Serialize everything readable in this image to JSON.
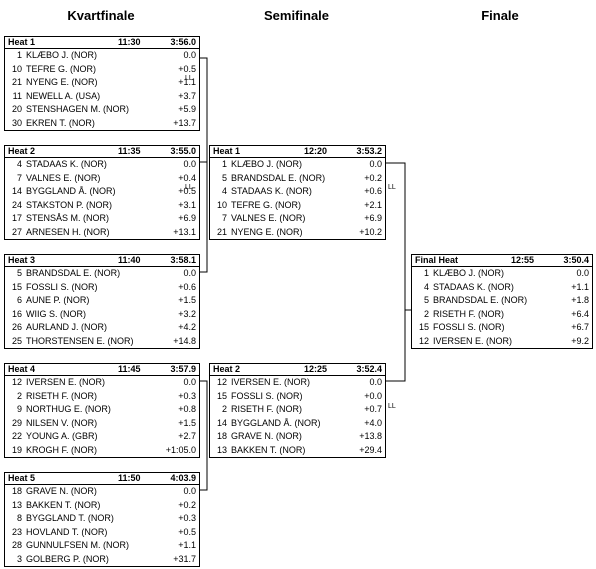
{
  "rounds": {
    "quarterfinal": "Kvartfinale",
    "semifinal": "Semifinale",
    "final": "Finale"
  },
  "ll_label": "LL",
  "quarterfinals": [
    {
      "name": "Heat 1",
      "time": "11:30",
      "result": "3:56.0",
      "rows": [
        {
          "bib": "1",
          "athlete": "KLÆBO J. (NOR)",
          "diff": "0.0"
        },
        {
          "bib": "10",
          "athlete": "TEFRE G. (NOR)",
          "diff": "+0.5"
        },
        {
          "bib": "21",
          "athlete": "NYENG E. (NOR)",
          "diff": "+1.1"
        },
        {
          "bib": "11",
          "athlete": "NEWELL A. (USA)",
          "diff": "+3.7"
        },
        {
          "bib": "20",
          "athlete": "STENSHAGEN M. (NOR)",
          "diff": "+5.9"
        },
        {
          "bib": "30",
          "athlete": "EKREN T. (NOR)",
          "diff": "+13.7"
        }
      ]
    },
    {
      "name": "Heat 2",
      "time": "11:35",
      "result": "3:55.0",
      "rows": [
        {
          "bib": "4",
          "athlete": "STADAAS K. (NOR)",
          "diff": "0.0"
        },
        {
          "bib": "7",
          "athlete": "VALNES E. (NOR)",
          "diff": "+0.4"
        },
        {
          "bib": "14",
          "athlete": "BYGGLAND Å. (NOR)",
          "diff": "+0.5"
        },
        {
          "bib": "24",
          "athlete": "STAKSTON P. (NOR)",
          "diff": "+3.1"
        },
        {
          "bib": "17",
          "athlete": "STENSÅS M. (NOR)",
          "diff": "+6.9"
        },
        {
          "bib": "27",
          "athlete": "ARNESEN H. (NOR)",
          "diff": "+13.1"
        }
      ]
    },
    {
      "name": "Heat 3",
      "time": "11:40",
      "result": "3:58.1",
      "rows": [
        {
          "bib": "5",
          "athlete": "BRANDSDAL E. (NOR)",
          "diff": "0.0"
        },
        {
          "bib": "15",
          "athlete": "FOSSLI S. (NOR)",
          "diff": "+0.6"
        },
        {
          "bib": "6",
          "athlete": "AUNE P. (NOR)",
          "diff": "+1.5"
        },
        {
          "bib": "16",
          "athlete": "WIIG S. (NOR)",
          "diff": "+3.2"
        },
        {
          "bib": "26",
          "athlete": "AURLAND J. (NOR)",
          "diff": "+4.2"
        },
        {
          "bib": "25",
          "athlete": "THORSTENSEN E. (NOR)",
          "diff": "+14.8"
        }
      ]
    },
    {
      "name": "Heat 4",
      "time": "11:45",
      "result": "3:57.9",
      "rows": [
        {
          "bib": "12",
          "athlete": "IVERSEN E. (NOR)",
          "diff": "0.0"
        },
        {
          "bib": "2",
          "athlete": "RISETH F. (NOR)",
          "diff": "+0.3"
        },
        {
          "bib": "9",
          "athlete": "NORTHUG E. (NOR)",
          "diff": "+0.8"
        },
        {
          "bib": "29",
          "athlete": "NILSEN V. (NOR)",
          "diff": "+1.5"
        },
        {
          "bib": "22",
          "athlete": "YOUNG A. (GBR)",
          "diff": "+2.7"
        },
        {
          "bib": "19",
          "athlete": "KROGH F. (NOR)",
          "diff": "+1:05.0"
        }
      ]
    },
    {
      "name": "Heat 5",
      "time": "11:50",
      "result": "4:03.9",
      "rows": [
        {
          "bib": "18",
          "athlete": "GRAVE N. (NOR)",
          "diff": "0.0"
        },
        {
          "bib": "13",
          "athlete": "BAKKEN T. (NOR)",
          "diff": "+0.2"
        },
        {
          "bib": "8",
          "athlete": "BYGGLAND T. (NOR)",
          "diff": "+0.3"
        },
        {
          "bib": "23",
          "athlete": "HOVLAND T. (NOR)",
          "diff": "+0.5"
        },
        {
          "bib": "28",
          "athlete": "GUNNULFSEN M. (NOR)",
          "diff": "+1.1"
        },
        {
          "bib": "3",
          "athlete": "GOLBERG P. (NOR)",
          "diff": "+31.7"
        }
      ]
    }
  ],
  "semifinals": [
    {
      "name": "Heat 1",
      "time": "12:20",
      "result": "3:53.2",
      "rows": [
        {
          "bib": "1",
          "athlete": "KLÆBO J. (NOR)",
          "diff": "0.0"
        },
        {
          "bib": "5",
          "athlete": "BRANDSDAL E. (NOR)",
          "diff": "+0.2"
        },
        {
          "bib": "4",
          "athlete": "STADAAS K. (NOR)",
          "diff": "+0.6"
        },
        {
          "bib": "10",
          "athlete": "TEFRE G. (NOR)",
          "diff": "+2.1"
        },
        {
          "bib": "7",
          "athlete": "VALNES E. (NOR)",
          "diff": "+6.9"
        },
        {
          "bib": "21",
          "athlete": "NYENG E. (NOR)",
          "diff": "+10.2"
        }
      ]
    },
    {
      "name": "Heat 2",
      "time": "12:25",
      "result": "3:52.4",
      "rows": [
        {
          "bib": "12",
          "athlete": "IVERSEN E. (NOR)",
          "diff": "0.0"
        },
        {
          "bib": "15",
          "athlete": "FOSSLI S. (NOR)",
          "diff": "+0.0"
        },
        {
          "bib": "2",
          "athlete": "RISETH F. (NOR)",
          "diff": "+0.7"
        },
        {
          "bib": "14",
          "athlete": "BYGGLAND Å. (NOR)",
          "diff": "+4.0"
        },
        {
          "bib": "18",
          "athlete": "GRAVE N. (NOR)",
          "diff": "+13.8"
        },
        {
          "bib": "13",
          "athlete": "BAKKEN T. (NOR)",
          "diff": "+29.4"
        }
      ]
    }
  ],
  "final": {
    "name": "Final Heat",
    "time": "12:55",
    "result": "3:50.4",
    "rows": [
      {
        "bib": "1",
        "athlete": "KLÆBO J. (NOR)",
        "diff": "0.0"
      },
      {
        "bib": "4",
        "athlete": "STADAAS K. (NOR)",
        "diff": "+1.1"
      },
      {
        "bib": "5",
        "athlete": "BRANDSDAL E. (NOR)",
        "diff": "+1.8"
      },
      {
        "bib": "2",
        "athlete": "RISETH F. (NOR)",
        "diff": "+6.4"
      },
      {
        "bib": "15",
        "athlete": "FOSSLI S. (NOR)",
        "diff": "+6.7"
      },
      {
        "bib": "12",
        "athlete": "IVERSEN E. (NOR)",
        "diff": "+9.2"
      }
    ]
  }
}
